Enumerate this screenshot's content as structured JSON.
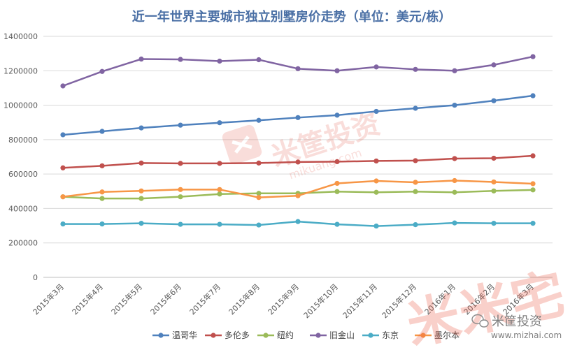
{
  "chart_data": {
    "type": "line",
    "title": "近一年世界主要城市独立别墅房价走势（单位：美元/栋）",
    "categories": [
      "2015年3月",
      "2015年4月",
      "2015年5月",
      "2015年6月",
      "2015年7月",
      "2015年8月",
      "2015年9月",
      "2015年10月",
      "2015年11月",
      "2015年12月",
      "2016年1月",
      "2016年2月",
      "2016年3月"
    ],
    "ylim": [
      0,
      1400000
    ],
    "yticks": [
      "0",
      "200000",
      "400000",
      "600000",
      "800000",
      "1000000",
      "1200000",
      "1400000"
    ],
    "grid": true,
    "legend_position": "bottom",
    "series": [
      {
        "name": "温哥华",
        "color": "#4f81bd",
        "values": [
          828000,
          848000,
          868000,
          884000,
          898000,
          912000,
          928000,
          942000,
          964000,
          982000,
          1000000,
          1026000,
          1055000
        ]
      },
      {
        "name": "多伦多",
        "color": "#c0504d",
        "values": [
          636000,
          648000,
          664000,
          662000,
          662000,
          664000,
          670000,
          672000,
          676000,
          678000,
          690000,
          692000,
          706000
        ]
      },
      {
        "name": "纽约",
        "color": "#9bbb59",
        "values": [
          468000,
          458000,
          458000,
          468000,
          484000,
          488000,
          488000,
          498000,
          494000,
          498000,
          494000,
          502000,
          508000
        ]
      },
      {
        "name": "旧金山",
        "color": "#8064a2",
        "values": [
          1112000,
          1196000,
          1268000,
          1266000,
          1256000,
          1264000,
          1212000,
          1200000,
          1222000,
          1208000,
          1200000,
          1234000,
          1282000
        ]
      },
      {
        "name": "东京",
        "color": "#4bacc6",
        "values": [
          310000,
          310000,
          314000,
          308000,
          308000,
          304000,
          324000,
          308000,
          298000,
          306000,
          316000,
          314000,
          314000
        ]
      },
      {
        "name": "墨尔本",
        "color": "#f79646",
        "values": [
          468000,
          496000,
          502000,
          510000,
          510000,
          464000,
          474000,
          546000,
          560000,
          552000,
          562000,
          554000,
          544000
        ]
      }
    ]
  },
  "watermark": {
    "center_text": "米筐投资",
    "center_subtext": "mikuang.com",
    "brand_text": "米筐投资",
    "brand_url": "www.mizhai.com",
    "logo_chars": "米米宅"
  }
}
